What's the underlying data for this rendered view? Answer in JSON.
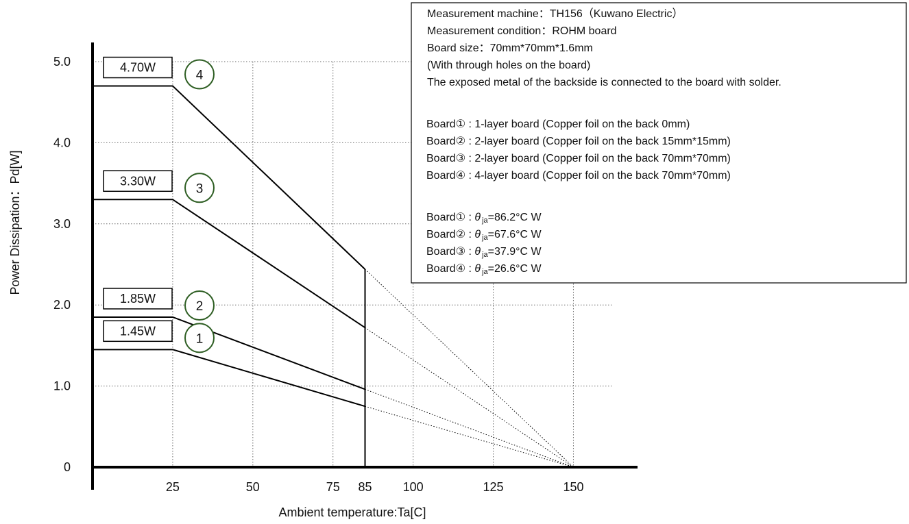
{
  "chart_data": {
    "type": "line",
    "xlabel": "Ambient temperature:Ta[C]",
    "ylabel": "Power Dissipation：Pd[W]",
    "x_ticks": [
      {
        "value": 25,
        "label": "25"
      },
      {
        "value": 50,
        "label": "50"
      },
      {
        "value": 75,
        "label": "75"
      },
      {
        "value": 85,
        "label": "85"
      },
      {
        "value": 100,
        "label": "100"
      },
      {
        "value": 125,
        "label": "125"
      },
      {
        "value": 150,
        "label": "150"
      }
    ],
    "y_ticks": [
      {
        "value": 0,
        "label": "0"
      },
      {
        "value": 1,
        "label": "1.0"
      },
      {
        "value": 2,
        "label": "2.0"
      },
      {
        "value": 3,
        "label": "3.0"
      },
      {
        "value": 4,
        "label": "4.0"
      },
      {
        "value": 5,
        "label": "5.0"
      }
    ],
    "xlim": [
      0,
      170
    ],
    "ylim": [
      0,
      5.0
    ],
    "grid": true,
    "operating_limit_x": 85,
    "series": [
      {
        "id": "1",
        "marker": "1",
        "max_label": "1.45W",
        "x": [
          0,
          25,
          85
        ],
        "y": [
          1.45,
          1.45,
          0.75
        ],
        "extension": {
          "x": [
            85,
            150
          ],
          "y": [
            0.75,
            0
          ]
        }
      },
      {
        "id": "2",
        "marker": "2",
        "max_label": "1.85W",
        "x": [
          0,
          25,
          85
        ],
        "y": [
          1.85,
          1.85,
          0.96
        ],
        "extension": {
          "x": [
            85,
            150
          ],
          "y": [
            0.96,
            0
          ]
        }
      },
      {
        "id": "3",
        "marker": "3",
        "max_label": "3.30W",
        "x": [
          0,
          25,
          85
        ],
        "y": [
          3.3,
          3.3,
          1.72
        ],
        "extension": {
          "x": [
            85,
            150
          ],
          "y": [
            1.72,
            0
          ]
        }
      },
      {
        "id": "4",
        "marker": "4",
        "max_label": "4.70W",
        "x": [
          0,
          25,
          85
        ],
        "y": [
          4.7,
          4.7,
          2.44
        ],
        "extension": {
          "x": [
            85,
            150
          ],
          "y": [
            2.44,
            0
          ]
        }
      }
    ]
  },
  "info": {
    "line1": "Measurement machine：TH156（Kuwano Electric）",
    "line2": "Measurement condition：ROHM board",
    "line3": "Board size：70mm*70mm*1.6mm",
    "line4": "(With through holes on the board)",
    "line5": "The exposed metal of the backside is connected to the board with solder.",
    "boards": [
      "Board① : 1-layer board (Copper foil on the back 0mm)",
      "Board② : 2-layer board (Copper foil on the back 15mm*15mm)",
      "Board③ : 2-layer board (Copper foil on the back 70mm*70mm)",
      "Board④ : 4-layer board (Copper foil on the back 70mm*70mm)"
    ],
    "thermal": [
      {
        "prefix": "Board① : ",
        "symbol": "θ",
        "sub": "ja",
        "value": "=86.2°C W"
      },
      {
        "prefix": "Board② : ",
        "symbol": "θ",
        "sub": "ja",
        "value": "=67.6°C W"
      },
      {
        "prefix": "Board③ : ",
        "symbol": "θ",
        "sub": "ja",
        "value": "=37.9°C W"
      },
      {
        "prefix": "Board④ : ",
        "symbol": "θ",
        "sub": "ja",
        "value": "=26.6°C W"
      }
    ]
  }
}
